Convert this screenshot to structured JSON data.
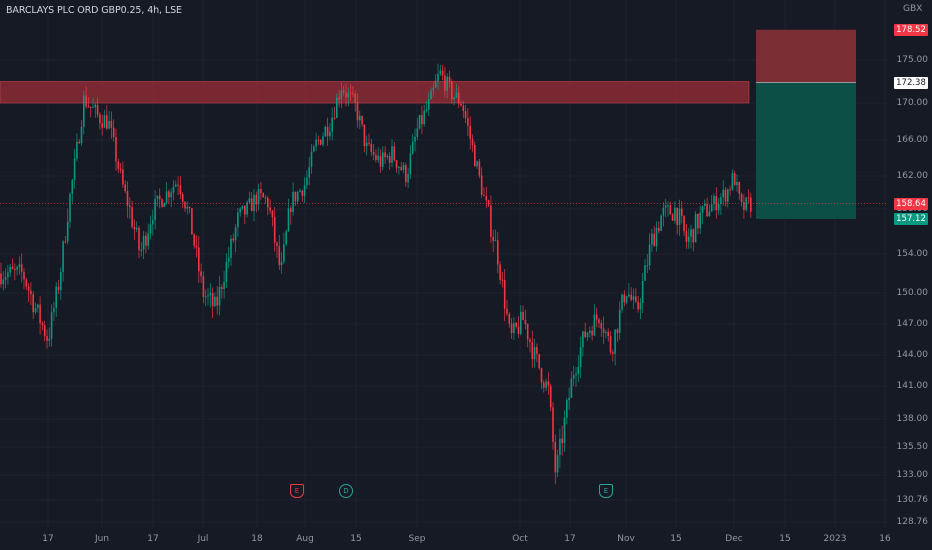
{
  "header": {
    "title": "BARCLAYS PLC ORD GBP0.25, 4h, LSE",
    "currency": "GBX"
  },
  "price_axis": {
    "ticks": [
      "175.00",
      "170.00",
      "166.00",
      "162.00",
      "158.00",
      "154.00",
      "150.00",
      "147.00",
      "144.00",
      "141.00",
      "138.00",
      "135.50",
      "133.00",
      "130.76",
      "128.76"
    ]
  },
  "price_tags": [
    {
      "label": "178.52",
      "color": "#f23645",
      "value": 178.52
    },
    {
      "label": "172.38",
      "color": "#ffffff",
      "value": 172.38
    },
    {
      "label": "158.64",
      "color": "#f23645",
      "value": 158.64
    },
    {
      "label": "157.12",
      "color": "#089981",
      "value": 157.12
    }
  ],
  "time_axis": {
    "labels": [
      "17",
      "Jun",
      "17",
      "Jul",
      "18",
      "Aug",
      "15",
      "Sep",
      "Oct",
      "17",
      "Nov",
      "15",
      "Dec",
      "15",
      "2023",
      "16"
    ]
  },
  "events": [
    {
      "type": "earnings",
      "glyph": "E",
      "color": "#f23645"
    },
    {
      "type": "dividend",
      "glyph": "D",
      "color": "#26a69a"
    },
    {
      "type": "earnings",
      "glyph": "E",
      "color": "#26a69a"
    }
  ],
  "annotations": {
    "resistance_zone": {
      "from": 170.0,
      "to": 172.5,
      "color": "#8b2c35"
    },
    "position": {
      "stop": 178.52,
      "entry": 172.38,
      "target": 157.12,
      "loss_color": "#7a2d33",
      "profit_color": "#0b4f47"
    }
  },
  "colors": {
    "up": "#089981",
    "down": "#f23645",
    "background": "#161a25"
  },
  "chart_data": {
    "type": "candlestick",
    "title": "BARCLAYS PLC ORD GBP0.25, 4h, LSE",
    "ylabel": "GBX",
    "ylim": [
      128.76,
      178.52
    ],
    "x_ticks": [
      "17",
      "Jun",
      "17",
      "Jul",
      "18",
      "Aug",
      "15",
      "Sep",
      "Oct",
      "17",
      "Nov",
      "15",
      "Dec",
      "15",
      "2023",
      "16"
    ],
    "close_path": [
      [
        "May 10",
        152.0
      ],
      [
        "May 13",
        149.0
      ],
      [
        "May 17",
        145.5
      ],
      [
        "May 20",
        151.0
      ],
      [
        "May 24",
        162.0
      ],
      [
        "May 27",
        170.5
      ],
      [
        "May 31",
        168.5
      ],
      [
        "Jun 3",
        168.0
      ],
      [
        "Jun 8",
        160.0
      ],
      [
        "Jun 13",
        154.0
      ],
      [
        "Jun 17",
        158.0
      ],
      [
        "Jun 21",
        160.0
      ],
      [
        "Jun 24",
        161.5
      ],
      [
        "Jun 28",
        156.0
      ],
      [
        "Jul 1",
        150.0
      ],
      [
        "Jul 5",
        148.5
      ],
      [
        "Jul 8",
        152.5
      ],
      [
        "Jul 12",
        157.0
      ],
      [
        "Jul 15",
        158.0
      ],
      [
        "Jul 18",
        159.5
      ],
      [
        "Jul 21",
        159.0
      ],
      [
        "Jul 25",
        152.0
      ],
      [
        "Jul 28",
        159.0
      ],
      [
        "Aug 1",
        161.0
      ],
      [
        "Aug 4",
        165.5
      ],
      [
        "Aug 8",
        168.0
      ],
      [
        "Aug 11",
        172.0
      ],
      [
        "Aug 15",
        169.5
      ],
      [
        "Aug 18",
        165.0
      ],
      [
        "Aug 22",
        163.5
      ],
      [
        "Aug 25",
        164.5
      ],
      [
        "Aug 29",
        162.0
      ],
      [
        "Sep 1",
        167.0
      ],
      [
        "Sep 5",
        170.0
      ],
      [
        "Sep 8",
        173.5
      ],
      [
        "Sep 12",
        171.0
      ],
      [
        "Sep 15",
        170.0
      ],
      [
        "Sep 19",
        164.0
      ],
      [
        "Sep 22",
        159.0
      ],
      [
        "Sep 26",
        154.0
      ],
      [
        "Sep 30",
        145.5
      ],
      [
        "Oct 4",
        147.5
      ],
      [
        "Oct 7",
        144.0
      ],
      [
        "Oct 11",
        140.5
      ],
      [
        "Oct 13",
        133.0
      ],
      [
        "Oct 18",
        142.5
      ],
      [
        "Oct 21",
        146.0
      ],
      [
        "Oct 25",
        148.0
      ],
      [
        "Oct 28",
        144.5
      ],
      [
        "Nov 1",
        150.5
      ],
      [
        "Nov 4",
        148.0
      ],
      [
        "Nov 8",
        155.0
      ],
      [
        "Nov 11",
        157.5
      ],
      [
        "Nov 15",
        158.0
      ],
      [
        "Nov 18",
        155.0
      ],
      [
        "Nov 22",
        157.5
      ],
      [
        "Nov 25",
        158.5
      ],
      [
        "Nov 29",
        160.0
      ],
      [
        "Dec 1",
        162.0
      ],
      [
        "Dec 3",
        158.0
      ],
      [
        "Dec 5",
        158.6
      ]
    ],
    "last_price": 158.64
  }
}
